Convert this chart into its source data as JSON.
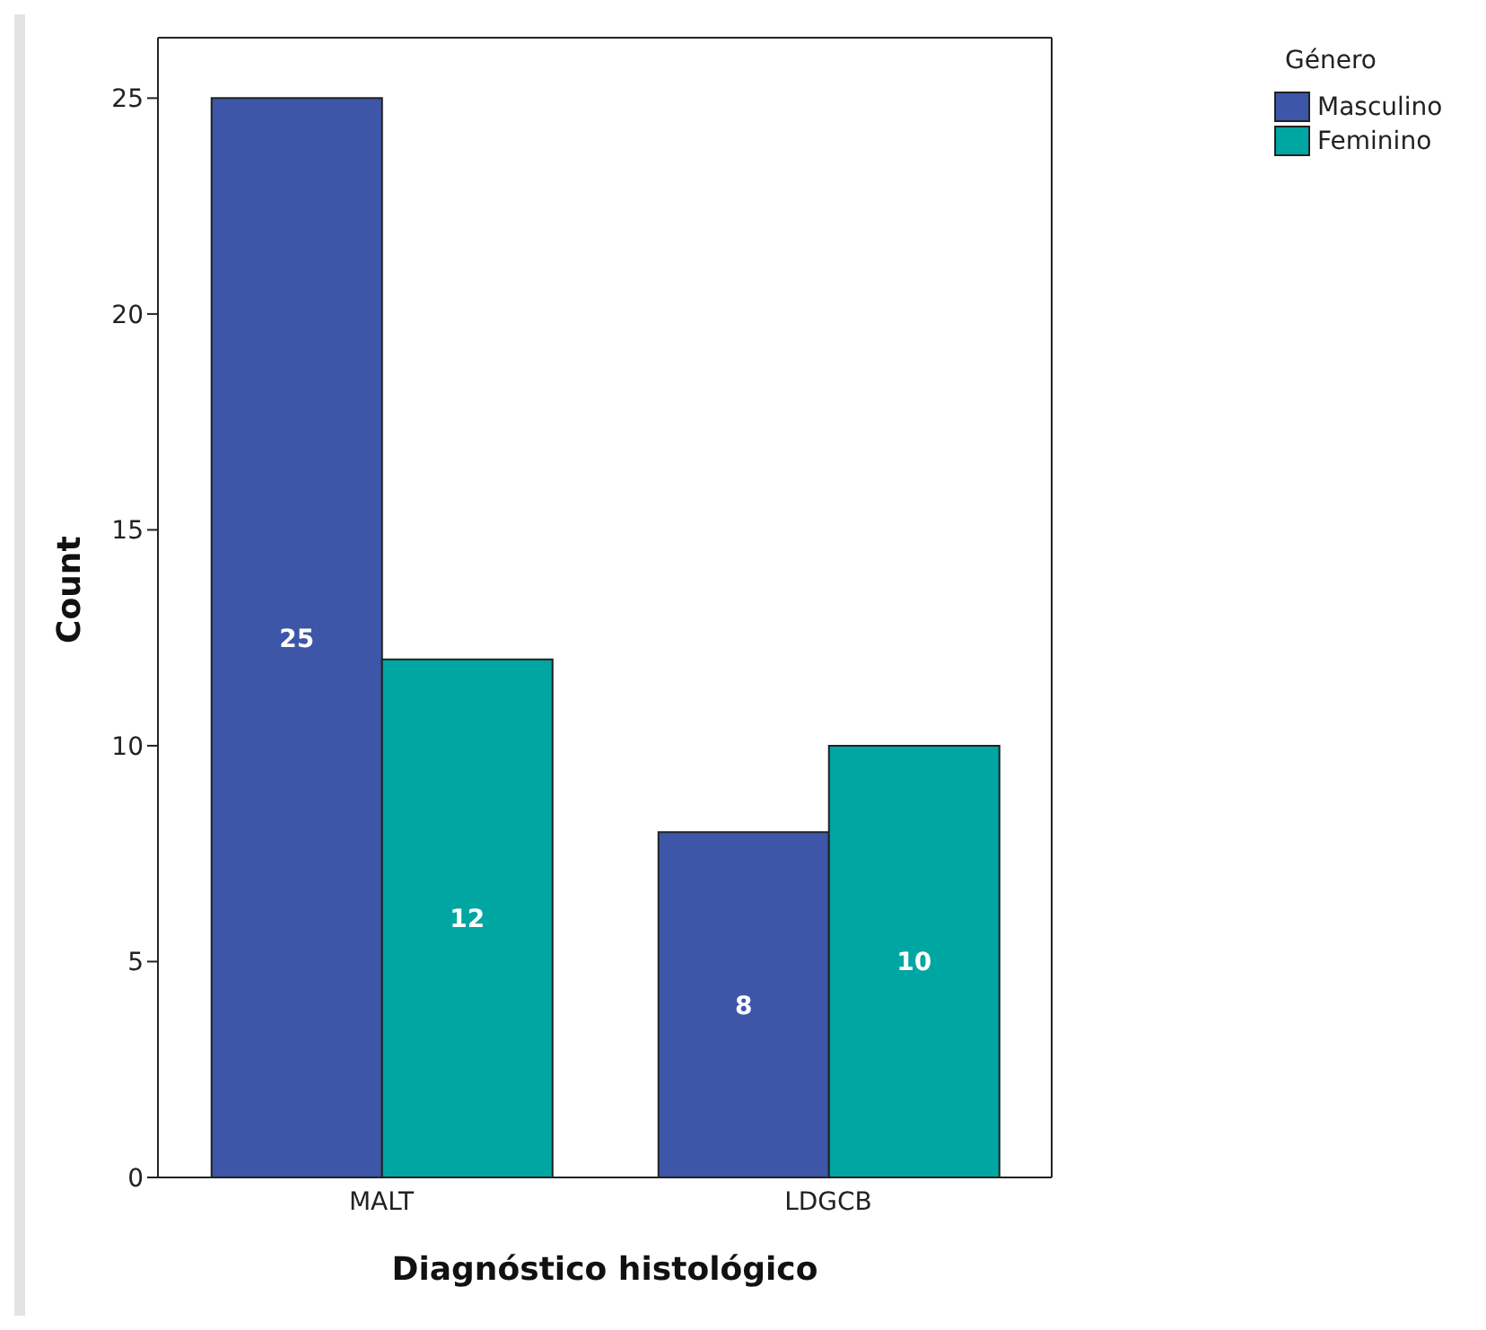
{
  "chart_data": {
    "type": "bar",
    "xlabel": "Diagnóstico histológico",
    "ylabel": "Count",
    "legend_title": "Género",
    "categories": [
      "MALT",
      "LDGCB"
    ],
    "series": [
      {
        "name": "Masculino",
        "color": "#3d56a8",
        "values": [
          25,
          8
        ]
      },
      {
        "name": "Feminino",
        "color": "#00a6a1",
        "values": [
          12,
          10
        ]
      }
    ],
    "ylim": [
      0,
      26.4
    ],
    "yticks": [
      0,
      5,
      10,
      15,
      20,
      25
    ],
    "grid": false,
    "legend": "top right",
    "data_labels": true
  }
}
